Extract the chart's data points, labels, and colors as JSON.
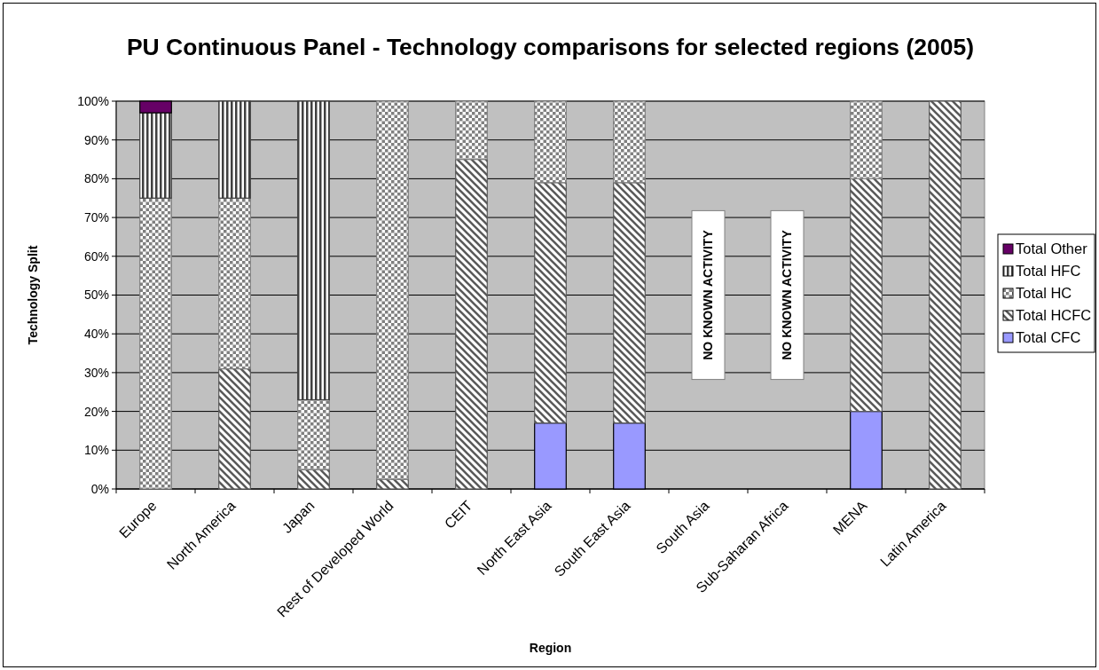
{
  "chart_data": {
    "type": "bar",
    "title": "PU Continuous Panel - Technology comparisons for selected regions (2005)",
    "xlabel": "Region",
    "ylabel": "Technology Split",
    "categories": [
      "Europe",
      "North America",
      "Japan",
      "Rest of Developed World",
      "CEIT",
      "North East Asia",
      "South East Asia",
      "South Asia",
      "Sub-Saharan Africa",
      "MENA",
      "Latin America"
    ],
    "stacked": true,
    "series": [
      {
        "name": "Total CFC",
        "color": "#9999ff",
        "values": [
          0,
          0,
          0,
          0,
          0,
          17,
          17,
          null,
          null,
          20,
          0
        ]
      },
      {
        "name": "Total HCFC",
        "color": "#5a5a5a",
        "values": [
          0,
          31,
          5,
          2.5,
          85,
          62,
          62,
          null,
          null,
          60,
          100
        ]
      },
      {
        "name": "Total HC",
        "color": "#808080",
        "values": [
          75,
          44,
          18,
          97.5,
          15,
          21,
          21,
          null,
          null,
          20,
          0
        ]
      },
      {
        "name": "Total HFC",
        "color": "#404040",
        "values": [
          22,
          25,
          77,
          0,
          0,
          0,
          0,
          null,
          null,
          0,
          0
        ]
      },
      {
        "name": "Total Other",
        "color": "#660066",
        "values": [
          3,
          0,
          0,
          0,
          0,
          0,
          0,
          null,
          null,
          0,
          0
        ]
      }
    ],
    "ylim": [
      0,
      100
    ],
    "yticks": [
      {
        "value": 0,
        "label": "0%"
      },
      {
        "value": 10,
        "label": "10%"
      },
      {
        "value": 20,
        "label": "20%"
      },
      {
        "value": 30,
        "label": "30%"
      },
      {
        "value": 40,
        "label": "40%"
      },
      {
        "value": 50,
        "label": "50%"
      },
      {
        "value": 60,
        "label": "60%"
      },
      {
        "value": 70,
        "label": "70%"
      },
      {
        "value": 80,
        "label": "80%"
      },
      {
        "value": 90,
        "label": "90%"
      },
      {
        "value": 100,
        "label": "100%"
      }
    ],
    "grid": "y",
    "legend": "right",
    "annotations": [
      "NO KNOWN ACTIVITY",
      "NO KNOWN ACTIVITY"
    ]
  }
}
